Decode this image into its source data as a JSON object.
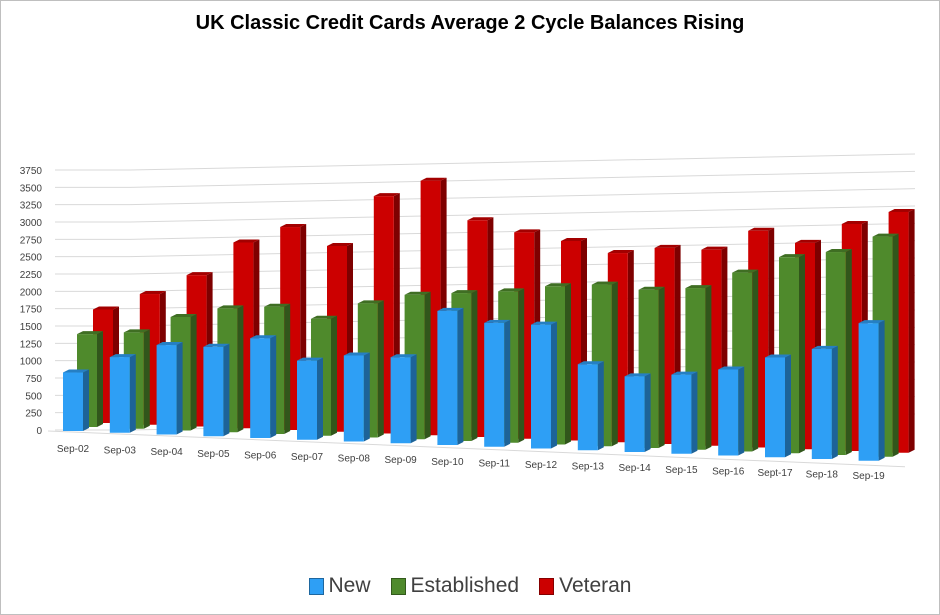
{
  "chart_data": {
    "type": "bar",
    "title": "UK Classic Credit Cards Average 2 Cycle Balances Rising",
    "categories": [
      "Sep-02",
      "Sep-03",
      "Sep-04",
      "Sep-05",
      "Sep-06",
      "Sep-07",
      "Sep-08",
      "Sep-09",
      "Sep-10",
      "Sep-11",
      "Sep-12",
      "Sep-13",
      "Sep-14",
      "Sep-15",
      "Sep-16",
      "Sept-17",
      "Sep-18",
      "Sep-19"
    ],
    "y_ticks": [
      "0",
      "250",
      "500",
      "750",
      "1000",
      "1250",
      "1500",
      "1750",
      "2000",
      "2250",
      "2500",
      "2750",
      "3000",
      "3250",
      "3500",
      "3750"
    ],
    "ylim": [
      0,
      3750
    ],
    "grid": true,
    "legend_position": "bottom",
    "series": [
      {
        "name": "New",
        "color": "#2e9ff5",
        "values": [
          850,
          1100,
          1300,
          1300,
          1450,
          1150,
          1250,
          1250,
          1950,
          1800,
          1800,
          1250,
          1100,
          1150,
          1250,
          1450,
          1600,
          2000
        ]
      },
      {
        "name": "Established",
        "color": "#4f8a2c",
        "values": [
          1350,
          1400,
          1650,
          1800,
          1850,
          1700,
          1950,
          2100,
          2150,
          2200,
          2300,
          2350,
          2300,
          2350,
          2600,
          2850,
          2950,
          3200
        ]
      },
      {
        "name": "Veteran",
        "color": "#cc0000",
        "values": [
          1650,
          1900,
          2200,
          2700,
          2950,
          2700,
          3450,
          3700,
          3150,
          3000,
          2900,
          2750,
          2850,
          2850,
          3150,
          3000,
          3300,
          3500
        ]
      }
    ]
  }
}
